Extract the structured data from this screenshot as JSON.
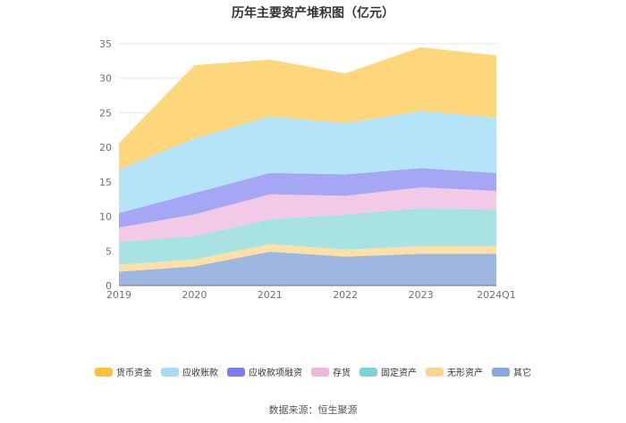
{
  "chart_data": {
    "type": "area",
    "stacked": true,
    "title": "历年主要资产堆积图（亿元）",
    "xlabel": "",
    "ylabel": "",
    "categories": [
      "2019",
      "2020",
      "2021",
      "2022",
      "2023",
      "2024Q1"
    ],
    "ylim": [
      0,
      35
    ],
    "yticks": [
      0,
      5,
      10,
      15,
      20,
      25,
      30,
      35
    ],
    "series": [
      {
        "name": "其它",
        "color": "#9eb7e0",
        "values": [
          2.0,
          2.8,
          4.9,
          4.2,
          4.6,
          4.6
        ]
      },
      {
        "name": "无形资产",
        "color": "#fde0a6",
        "values": [
          1.0,
          1.0,
          1.1,
          1.0,
          1.1,
          1.1
        ]
      },
      {
        "name": "固定资产",
        "color": "#a8e2e2",
        "values": [
          3.3,
          3.4,
          3.6,
          5.1,
          5.5,
          5.3
        ]
      },
      {
        "name": "存货",
        "color": "#f2c9e6",
        "values": [
          2.1,
          3.1,
          3.6,
          2.7,
          3.0,
          2.7
        ]
      },
      {
        "name": "应收款项融资",
        "color": "#a5a6f4",
        "values": [
          2.1,
          3.1,
          3.1,
          3.1,
          2.8,
          2.6
        ]
      },
      {
        "name": "应收账款",
        "color": "#b5e3f8",
        "values": [
          6.3,
          7.9,
          8.2,
          7.4,
          8.3,
          8.0
        ]
      },
      {
        "name": "货币资金",
        "color": "#fed67c",
        "values": [
          3.8,
          10.6,
          8.2,
          7.2,
          9.2,
          9.0
        ]
      }
    ],
    "legend": [
      {
        "name": "货币资金",
        "color": "#fbc33d"
      },
      {
        "name": "应收账款",
        "color": "#a6dbf7"
      },
      {
        "name": "应收款项融资",
        "color": "#7b7cef"
      },
      {
        "name": "存货",
        "color": "#eeb6dd"
      },
      {
        "name": "固定资产",
        "color": "#7dd4d4"
      },
      {
        "name": "无形资产",
        "color": "#fcd48f"
      },
      {
        "name": "其它",
        "color": "#8aa8de"
      }
    ],
    "legend_position": "bottom",
    "grid": true
  },
  "source": "数据来源：恒生聚源"
}
